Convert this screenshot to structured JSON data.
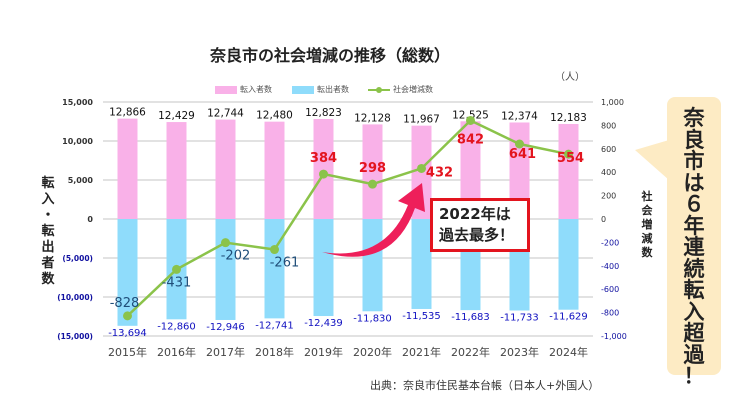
{
  "chart_data": {
    "type": "bar+line",
    "title": "奈良市の社会増減の推移（総数）",
    "unit": "（人）",
    "categories": [
      "2015年",
      "2016年",
      "2017年",
      "2018年",
      "2019年",
      "2020年",
      "2021年",
      "2022年",
      "2023年",
      "2024年"
    ],
    "series": [
      {
        "name": "転入者数",
        "type": "bar",
        "axis": "left",
        "color": "#f9b1e8",
        "values": [
          12866,
          12429,
          12744,
          12480,
          12823,
          12128,
          11967,
          12525,
          12374,
          12183
        ],
        "labels": [
          "12,866",
          "12,429",
          "12,744",
          "12,480",
          "12,823",
          "12,128",
          "11,967",
          "12,525",
          "12,374",
          "12,183"
        ]
      },
      {
        "name": "転出者数",
        "type": "bar",
        "axis": "left",
        "color": "#8fdcfb",
        "values": [
          -13694,
          -12860,
          -12946,
          -12741,
          -12439,
          -11830,
          -11535,
          -11683,
          -11733,
          -11629
        ],
        "labels": [
          "-13,694",
          "-12,860",
          "-12,946",
          "-12,741",
          "-12,439",
          "-11,830",
          "-11,535",
          "-11,683",
          "-11,733",
          "-11,629"
        ]
      },
      {
        "name": "社会増減数",
        "type": "line",
        "axis": "right",
        "color": "#8bc34a",
        "values": [
          -828,
          -431,
          -202,
          -261,
          384,
          298,
          432,
          842,
          641,
          554
        ],
        "labels": [
          "-828",
          "-431",
          "-202",
          "-261",
          "384",
          "298",
          "432",
          "842",
          "641",
          "554"
        ]
      }
    ],
    "ylabel": "転入・転出者数",
    "y2label": "社会増減数",
    "ylim": [
      -15000,
      15000
    ],
    "y2lim": [
      -1000,
      1000
    ],
    "yticks": [
      "15,000",
      "10,000",
      "5,000",
      "0",
      "(5,000)",
      "(10,000)",
      "(15,000)"
    ],
    "y2ticks": [
      "1,000",
      "800",
      "600",
      "400",
      "200",
      "0",
      "-200",
      "-400",
      "-600",
      "-800",
      "-1,000"
    ],
    "grid": true,
    "legend": "top"
  },
  "source": "出典：奈良市住民基本台帳（日本人+外国人）",
  "callout": "奈良市は６年連続転入超過！",
  "note": {
    "line1": "2022年は",
    "line2": "過去最多！"
  },
  "colors": {
    "positive_label": "#e3141e",
    "negative_label": "#1f4e79",
    "outflow_label": "#1010c0",
    "arrow": "#ee1f5a"
  }
}
